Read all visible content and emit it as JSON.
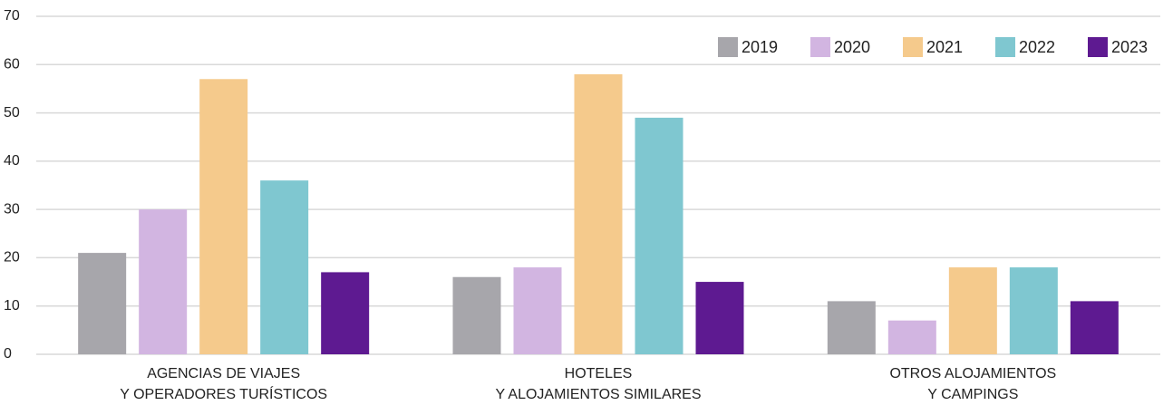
{
  "chart_data": {
    "type": "bar",
    "categories": [
      [
        "AGENCIAS DE VIAJES",
        "Y OPERADORES TURÍSTICOS"
      ],
      [
        "HOTELES",
        "Y ALOJAMIENTOS SIMILARES"
      ],
      [
        "OTROS ALOJAMIENTOS",
        "Y CAMPINGS"
      ]
    ],
    "series": [
      {
        "name": "2019",
        "color": "#a7a6ab",
        "values": [
          21,
          16,
          11
        ]
      },
      {
        "name": "2020",
        "color": "#d2b5e1",
        "values": [
          30,
          18,
          7
        ]
      },
      {
        "name": "2021",
        "color": "#f5ca8c",
        "values": [
          57,
          58,
          18
        ]
      },
      {
        "name": "2022",
        "color": "#7fc7d0",
        "values": [
          36,
          49,
          18
        ]
      },
      {
        "name": "2023",
        "color": "#5e1a91",
        "values": [
          17,
          15,
          11
        ]
      }
    ],
    "ylim": [
      0,
      70
    ],
    "yticks": [
      0,
      10,
      20,
      30,
      40,
      50,
      60,
      70
    ],
    "grid": true,
    "legend": "top-right"
  }
}
